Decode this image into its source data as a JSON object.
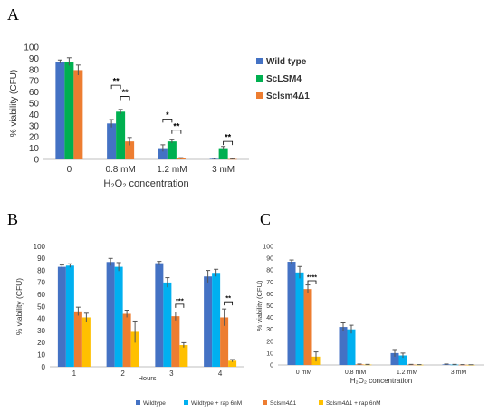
{
  "colors": {
    "blue": "#4472C4",
    "green": "#00B050",
    "orange": "#ED7D31",
    "lightblue": "#00B0F0",
    "yellow": "#FFC000",
    "errorbar": "#555555",
    "axis": "#bfbfbf",
    "grid": "#d9d9d9"
  },
  "panels": {
    "A": "A",
    "B": "B",
    "C": "C"
  },
  "chart_data": [
    {
      "id": "A",
      "type": "bar",
      "categories": [
        "0",
        "0.8 mM",
        "1.2 mM",
        "3 mM"
      ],
      "xlabel": "H₂O₂ concentration",
      "ylabel": "% viability (CFU)",
      "ylim": [
        0,
        100
      ],
      "yticks": [
        0,
        10,
        20,
        30,
        40,
        50,
        60,
        70,
        80,
        90,
        100
      ],
      "grid": false,
      "legend_position": "right",
      "series": [
        {
          "name": "Wild type",
          "color": "#4472C4",
          "values": [
            87,
            32,
            10,
            0.5
          ],
          "errors": [
            1.5,
            3.5,
            3,
            0.5
          ]
        },
        {
          "name": "ScLSM4",
          "color": "#00B050",
          "values": [
            87,
            42.5,
            16,
            10
          ],
          "errors": [
            3.5,
            2,
            1.5,
            1.5
          ]
        },
        {
          "name": "Sclsm4Δ1",
          "color": "#ED7D31",
          "values": [
            79.5,
            16,
            1,
            0.3
          ],
          "errors": [
            4.5,
            3.5,
            0.5,
            0.3
          ]
        }
      ],
      "annotations": [
        {
          "category": 1,
          "from": 0,
          "to": 1,
          "level": 66,
          "text": "**"
        },
        {
          "category": 1,
          "from": 1,
          "to": 2,
          "level": 56,
          "text": "**"
        },
        {
          "category": 2,
          "from": 0,
          "to": 1,
          "level": 36,
          "text": "*"
        },
        {
          "category": 2,
          "from": 1,
          "to": 2,
          "level": 26,
          "text": "**"
        },
        {
          "category": 3,
          "from": 1,
          "to": 2,
          "level": 16,
          "text": "**"
        }
      ]
    },
    {
      "id": "B",
      "type": "bar",
      "categories": [
        "1",
        "2",
        "3",
        "4"
      ],
      "xlabel": "Hours",
      "ylabel": "% viability (CFU)",
      "ylim": [
        0,
        100
      ],
      "yticks": [
        0,
        10,
        20,
        30,
        40,
        50,
        60,
        70,
        80,
        90,
        100
      ],
      "grid": false,
      "series": [
        {
          "name": "Wildtype",
          "color": "#4472C4",
          "values": [
            83,
            87,
            86,
            75
          ],
          "errors": [
            1.5,
            3,
            1.5,
            5
          ]
        },
        {
          "name": "Wildtype + rap 6nM",
          "color": "#00B0F0",
          "values": [
            84,
            83,
            70,
            78
          ],
          "errors": [
            1.5,
            3.5,
            4,
            3
          ]
        },
        {
          "name": "Sclsm4Δ1",
          "color": "#ED7D31",
          "values": [
            46,
            44,
            42,
            41
          ],
          "errors": [
            3.5,
            3,
            3.5,
            7
          ]
        },
        {
          "name": "Sclsm4Δ1 + rap 6nM",
          "color": "#FFC000",
          "values": [
            41,
            29,
            18,
            5
          ],
          "errors": [
            3.5,
            9,
            2,
            1
          ]
        }
      ],
      "annotations": [
        {
          "category": 2,
          "from": 2,
          "to": 3,
          "level": 52,
          "text": "***"
        },
        {
          "category": 3,
          "from": 2,
          "to": 3,
          "level": 54,
          "text": "**"
        }
      ]
    },
    {
      "id": "C",
      "type": "bar",
      "categories": [
        "0 mM",
        "0.8 mM",
        "1.2 mM",
        "3 mM"
      ],
      "xlabel": "H₂O₂ concentration",
      "ylabel": "% viability (CFU)",
      "ylim": [
        0,
        100
      ],
      "yticks": [
        0,
        10,
        20,
        30,
        40,
        50,
        60,
        70,
        80,
        90,
        100
      ],
      "grid": false,
      "series": [
        {
          "name": "Wildtype",
          "color": "#4472C4",
          "values": [
            87,
            32,
            10,
            0.5
          ],
          "errors": [
            1.5,
            3.5,
            3,
            0.3
          ]
        },
        {
          "name": "Wildtype + rap 6nM",
          "color": "#00B0F0",
          "values": [
            78,
            30,
            8,
            0.3
          ],
          "errors": [
            5,
            3.5,
            2,
            0.2
          ]
        },
        {
          "name": "Sclsm4Δ1",
          "color": "#ED7D31",
          "values": [
            64,
            0.5,
            0.3,
            0.2
          ],
          "errors": [
            3.5,
            0.3,
            0.2,
            0.1
          ]
        },
        {
          "name": "Sclsm4Δ1 + rap 6nM",
          "color": "#FFC000",
          "values": [
            7,
            0.3,
            0.2,
            0.1
          ],
          "errors": [
            4,
            0.2,
            0.1,
            0.1
          ]
        }
      ],
      "annotations": [
        {
          "category": 0,
          "from": 2,
          "to": 3,
          "level": 71,
          "text": "****"
        }
      ]
    }
  ],
  "shared_legend": [
    {
      "name": "Wildtype",
      "color": "#4472C4"
    },
    {
      "name": "Wildtype + rap 6nM",
      "color": "#00B0F0"
    },
    {
      "name": "Sclsm4Δ1",
      "color": "#ED7D31"
    },
    {
      "name": "Sclsm4Δ1 + rap 6nM",
      "color": "#FFC000"
    }
  ]
}
